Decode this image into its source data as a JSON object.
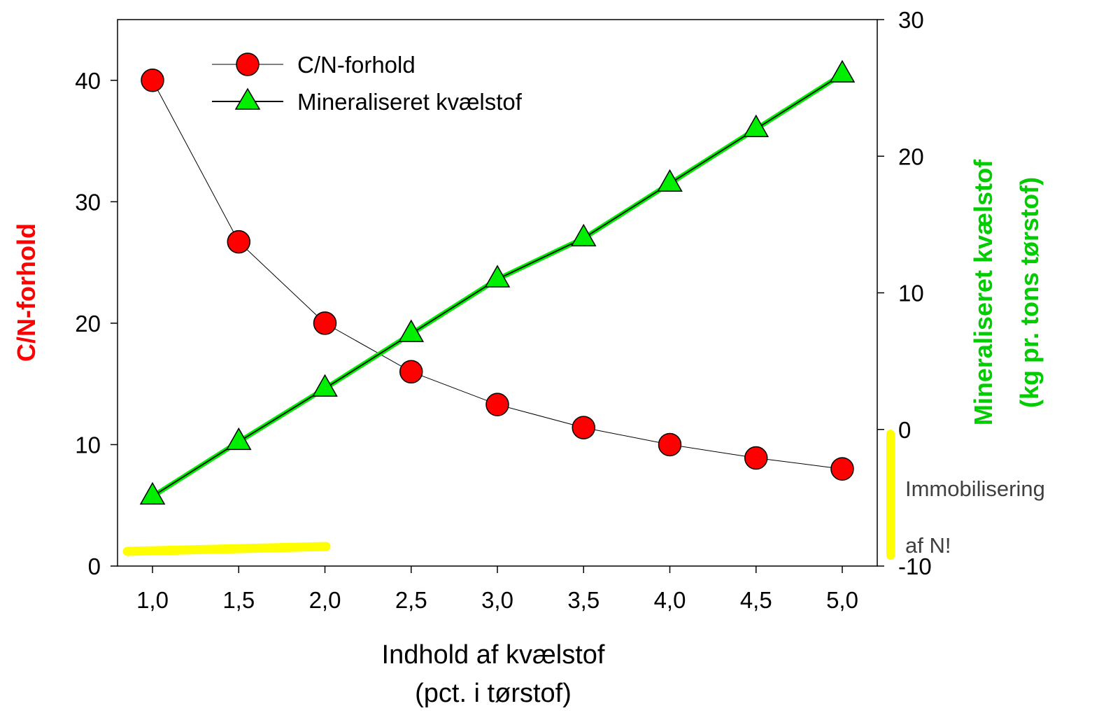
{
  "chart_data": {
    "type": "line",
    "x": [
      1.0,
      1.5,
      2.0,
      2.5,
      3.0,
      3.5,
      4.0,
      4.5,
      5.0
    ],
    "x_tick_labels": [
      "1,0",
      "1,5",
      "2,0",
      "2,5",
      "3,0",
      "3,5",
      "4,0",
      "4,5",
      "5,0"
    ],
    "xlabel_lines": [
      "Indhold af kvælstof",
      "(pct. i tørstof)"
    ],
    "y_left": {
      "label": "C/N-forhold",
      "color": "#ff0000",
      "range": [
        0,
        45
      ],
      "ticks": [
        0,
        10,
        20,
        30,
        40
      ],
      "tick_labels": [
        "0",
        "10",
        "20",
        "30",
        "40"
      ]
    },
    "y_right": {
      "label_lines": [
        "Mineraliseret kvælstof",
        "(kg pr. tons tørstof)"
      ],
      "color": "#00cc00",
      "range": [
        -10,
        30
      ],
      "ticks": [
        -10,
        0,
        10,
        20,
        30
      ],
      "tick_labels": [
        "-10",
        "0",
        "10",
        "20",
        "30"
      ]
    },
    "series": [
      {
        "name": "C/N-forhold",
        "axis": "left",
        "marker": "circle",
        "marker_color": "#ff0000",
        "values": [
          40.0,
          26.7,
          20.0,
          16.0,
          13.3,
          11.4,
          10.0,
          8.9,
          8.0
        ]
      },
      {
        "name": "Mineraliseret kvælstof",
        "axis": "right",
        "marker": "triangle",
        "marker_color": "#00ee00",
        "values": [
          -4.9,
          -0.9,
          3.0,
          7.0,
          11.0,
          14.0,
          18.0,
          22.0,
          26.0
        ]
      }
    ],
    "legend_position": "top-left",
    "grid": false,
    "annotation": {
      "lines": [
        "Immobilisering",
        "af N!"
      ],
      "color": "#404040",
      "highlight_color": "#ffff00"
    }
  }
}
